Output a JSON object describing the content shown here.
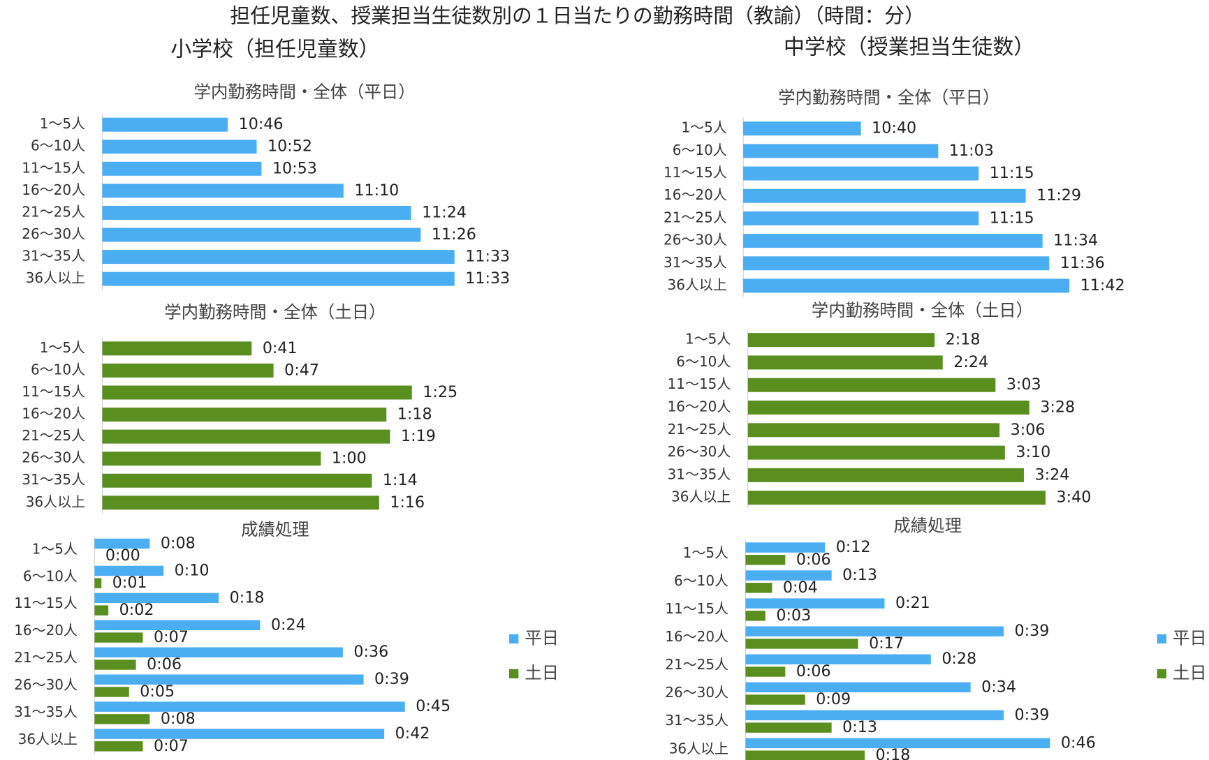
{
  "title": "担任児童数、授業担当生徒数別の１日当たりの勤務時間（教諭）（時間：分）",
  "sections": [
    "小学校（担任児童数）",
    "中学校（授業担当生徒数）"
  ],
  "chart_data": [
    {
      "type": "bar",
      "orientation": "horizontal",
      "title": "学内勤務時間・全体（平日）",
      "categories": [
        "1～5人",
        "6～10人",
        "11～15人",
        "16～20人",
        "21～25人",
        "26～30人",
        "31～35人",
        "36人以上"
      ],
      "xlim": [
        620,
        700
      ],
      "series": [
        {
          "color": "#4badf2",
          "values": [
            646,
            652,
            653,
            670,
            684,
            686,
            693,
            693
          ],
          "value_labels": [
            "10:46",
            "10:52",
            "10:53",
            "11:10",
            "11:24",
            "11:26",
            "11:33",
            "11:33"
          ]
        }
      ]
    },
    {
      "type": "bar",
      "orientation": "horizontal",
      "title": "学内勤務時間・全体（土日）",
      "categories": [
        "1～5人",
        "6～10人",
        "11～15人",
        "16～20人",
        "21～25人",
        "26～30人",
        "31～35人",
        "36人以上"
      ],
      "xlim": [
        0,
        100
      ],
      "series": [
        {
          "color": "#5a8e1f",
          "values": [
            41,
            47,
            85,
            78,
            79,
            60,
            74,
            76
          ],
          "value_labels": [
            "0:41",
            "0:47",
            "1:25",
            "1:18",
            "1:19",
            "1:00",
            "1:14",
            "1:16"
          ]
        }
      ]
    },
    {
      "type": "bar",
      "orientation": "horizontal",
      "title": "成績処理",
      "legend": "right",
      "categories": [
        "1～5人",
        "6～10人",
        "11～15人",
        "16～20人",
        "21～25人",
        "26～30人",
        "31～35人",
        "36人以上"
      ],
      "xlim": [
        0,
        50
      ],
      "series": [
        {
          "name": "平日",
          "color": "#4badf2",
          "values": [
            8,
            10,
            18,
            24,
            36,
            39,
            45,
            42
          ],
          "value_labels": [
            "0:08",
            "0:10",
            "0:18",
            "0:24",
            "0:36",
            "0:39",
            "0:45",
            "0:42"
          ]
        },
        {
          "name": "土日",
          "color": "#5a8e1f",
          "values": [
            0,
            1,
            2,
            7,
            6,
            5,
            8,
            7
          ],
          "value_labels": [
            "0:00",
            "0:01",
            "0:02",
            "0:07",
            "0:06",
            "0:05",
            "0:08",
            "0:07"
          ]
        }
      ]
    },
    {
      "type": "bar",
      "orientation": "horizontal",
      "title": "学内勤務時間・全体（平日）",
      "categories": [
        "1～5人",
        "6～10人",
        "11～15人",
        "16～20人",
        "21～25人",
        "26～30人",
        "31～35人",
        "36人以上"
      ],
      "xlim": [
        605,
        720
      ],
      "series": [
        {
          "color": "#4badf2",
          "values": [
            640,
            663,
            675,
            689,
            675,
            694,
            696,
            702
          ],
          "value_labels": [
            "10:40",
            "11:03",
            "11:15",
            "11:29",
            "11:15",
            "11:34",
            "11:36",
            "11:42"
          ]
        }
      ]
    },
    {
      "type": "bar",
      "orientation": "horizontal",
      "title": "学内勤務時間・全体（土日）",
      "categories": [
        "1～5人",
        "6～10人",
        "11～15人",
        "16～20人",
        "21～25人",
        "26～30人",
        "31～35人",
        "36人以上"
      ],
      "xlim": [
        0,
        240
      ],
      "series": [
        {
          "color": "#5a8e1f",
          "values": [
            138,
            144,
            183,
            208,
            186,
            190,
            204,
            220
          ],
          "value_labels": [
            "2:18",
            "2:24",
            "3:03",
            "3:28",
            "3:06",
            "3:10",
            "3:24",
            "3:40"
          ]
        }
      ]
    },
    {
      "type": "bar",
      "orientation": "horizontal",
      "title": "成績処理",
      "legend": "right",
      "categories": [
        "1～5人",
        "6～10人",
        "11～15人",
        "16～20人",
        "21～25人",
        "26～30人",
        "31～35人",
        "36人以上"
      ],
      "xlim": [
        0,
        50
      ],
      "series": [
        {
          "name": "平日",
          "color": "#4badf2",
          "values": [
            12,
            13,
            21,
            39,
            28,
            34,
            39,
            46
          ],
          "value_labels": [
            "0:12",
            "0:13",
            "0:21",
            "0:39",
            "0:28",
            "0:34",
            "0:39",
            "0:46"
          ]
        },
        {
          "name": "土日",
          "color": "#5a8e1f",
          "values": [
            6,
            4,
            3,
            17,
            6,
            9,
            13,
            18
          ],
          "value_labels": [
            "0:06",
            "0:04",
            "0:03",
            "0:17",
            "0:06",
            "0:09",
            "0:13",
            "0:18"
          ]
        }
      ]
    }
  ]
}
